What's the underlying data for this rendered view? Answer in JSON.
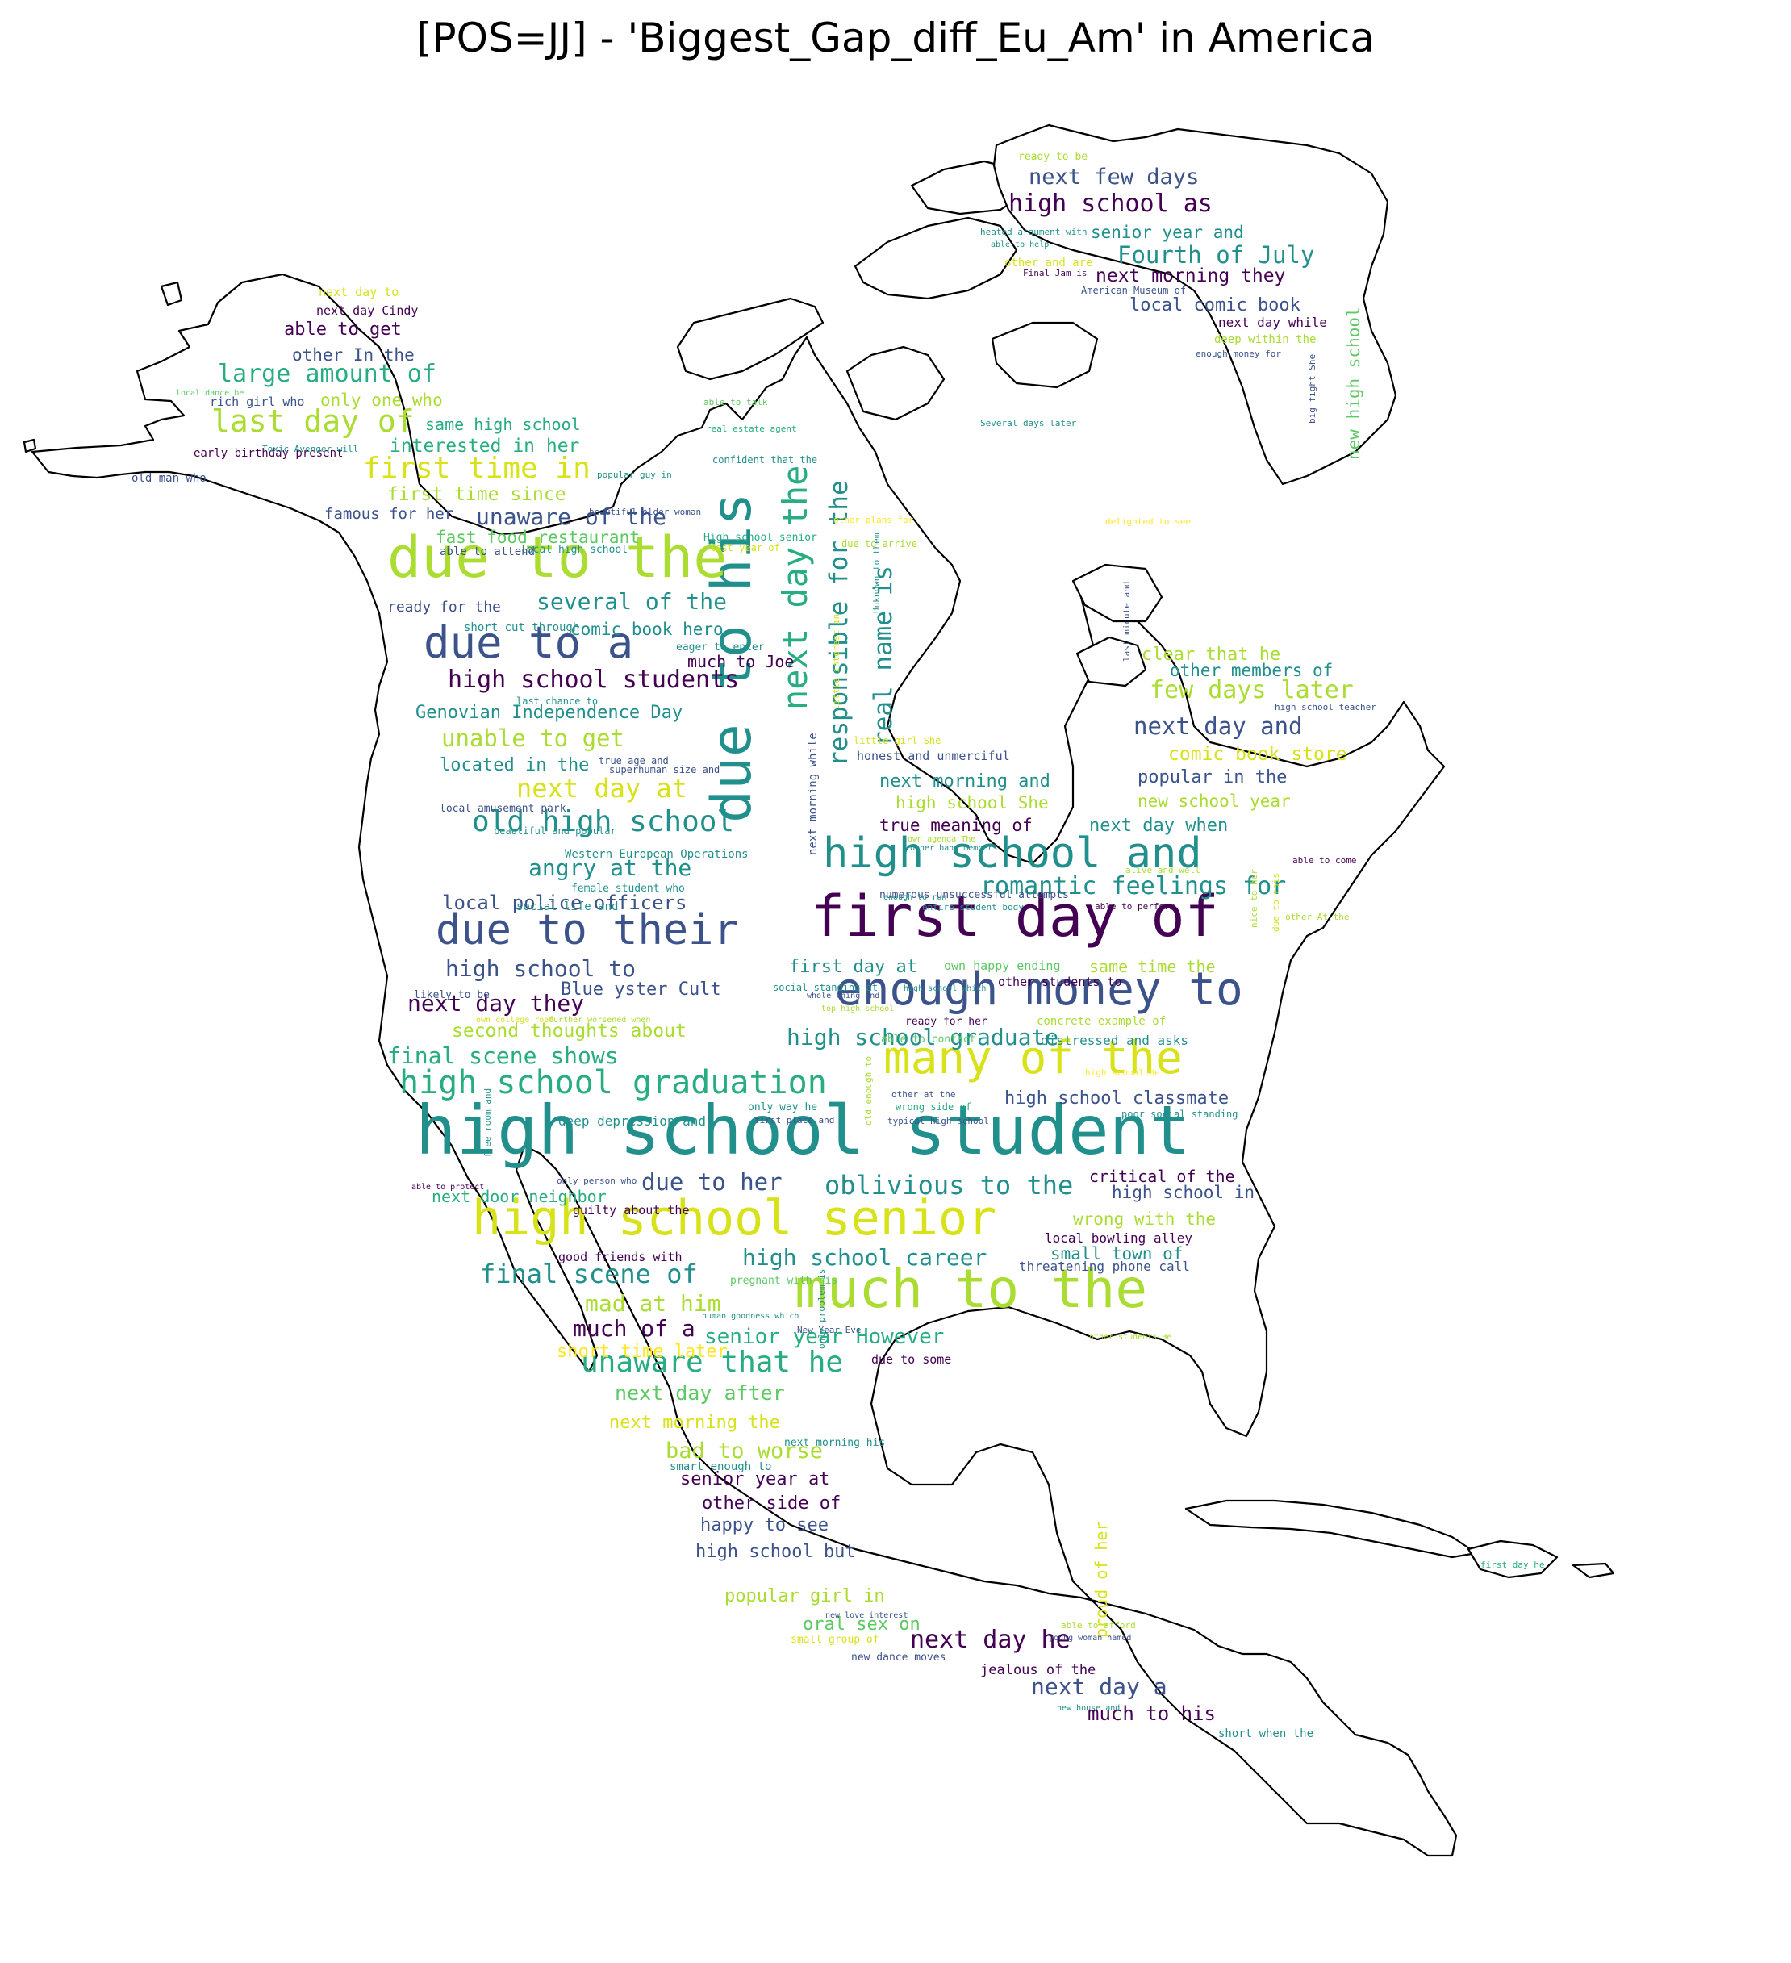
{
  "title": "[POS=JJ] - 'Biggest_Gap_diff_Eu_Am' in America",
  "palette": {
    "v1": "#440154",
    "v2": "#3b528b",
    "v3": "#21908d",
    "v4": "#27ad81",
    "v5": "#5dc963",
    "v6": "#aadc32",
    "v7": "#d8e219",
    "v8": "#fde725"
  },
  "words": [
    {
      "t": "high school student",
      "c": "v3"
    },
    {
      "t": "first day of",
      "c": "v1"
    },
    {
      "t": "due to his",
      "c": "v3"
    },
    {
      "t": "due to the",
      "c": "v6"
    },
    {
      "t": "much to the",
      "c": "v6"
    },
    {
      "t": "high school senior",
      "c": "v7"
    },
    {
      "t": "many of the",
      "c": "v7"
    },
    {
      "t": "enough money to",
      "c": "v2"
    },
    {
      "t": "due to their",
      "c": "v2"
    },
    {
      "t": "high school and",
      "c": "v3"
    },
    {
      "t": "due to a",
      "c": "v2"
    },
    {
      "t": "next day the",
      "c": "v4"
    },
    {
      "t": "high school graduation",
      "c": "v4"
    },
    {
      "t": "responsible for the",
      "c": "v3"
    },
    {
      "t": "real name is",
      "c": "v3"
    },
    {
      "t": "old high school",
      "c": "v3"
    },
    {
      "t": "last day of",
      "c": "v6"
    },
    {
      "t": "first time in",
      "c": "v7"
    },
    {
      "t": "oblivious to the",
      "c": "v3"
    },
    {
      "t": "final scene of",
      "c": "v3"
    },
    {
      "t": "unaware that he",
      "c": "v4"
    },
    {
      "t": "romantic feelings for",
      "c": "v3"
    },
    {
      "t": "high school students",
      "c": "v1"
    },
    {
      "t": "several of the",
      "c": "v3"
    },
    {
      "t": "next day at",
      "c": "v7"
    },
    {
      "t": "large amount of",
      "c": "v4"
    },
    {
      "t": "unable to get",
      "c": "v6"
    },
    {
      "t": "Fourth of July",
      "c": "v3"
    },
    {
      "t": "next few days",
      "c": "v2"
    },
    {
      "t": "high school as",
      "c": "v1"
    },
    {
      "t": "next day and",
      "c": "v2"
    },
    {
      "t": "few days later",
      "c": "v6"
    },
    {
      "t": "high school graduate",
      "c": "v3"
    },
    {
      "t": "angry at the",
      "c": "v3"
    },
    {
      "t": "final scene shows",
      "c": "v4"
    },
    {
      "t": "next day they",
      "c": "v1"
    },
    {
      "t": "high school to",
      "c": "v2"
    },
    {
      "t": "high school career",
      "c": "v3"
    },
    {
      "t": "mad at him",
      "c": "v6"
    },
    {
      "t": "much of a",
      "c": "v1"
    },
    {
      "t": "senior year However",
      "c": "v4"
    },
    {
      "t": "next day after",
      "c": "v5"
    },
    {
      "t": "bad to worse",
      "c": "v6"
    },
    {
      "t": "due to her",
      "c": "v2"
    },
    {
      "t": "next day he",
      "c": "v1"
    },
    {
      "t": "next day a",
      "c": "v2"
    },
    {
      "t": "much to his",
      "c": "v1"
    },
    {
      "t": "unaware of the",
      "c": "v2"
    },
    {
      "t": "new high school",
      "c": "v5"
    },
    {
      "t": "local police officers",
      "c": "v2"
    },
    {
      "t": "Genovian Independence Day",
      "c": "v3"
    },
    {
      "t": "first time since",
      "c": "v6"
    },
    {
      "t": "interested in her",
      "c": "v4"
    },
    {
      "t": "second thoughts about",
      "c": "v6"
    },
    {
      "t": "next morning they",
      "c": "v1"
    },
    {
      "t": "senior year and",
      "c": "v3"
    },
    {
      "t": "local comic book",
      "c": "v2"
    },
    {
      "t": "popular girl in",
      "c": "v6"
    },
    {
      "t": "oral sex on",
      "c": "v5"
    },
    {
      "t": "senior year at",
      "c": "v1"
    },
    {
      "t": "other side of",
      "c": "v1"
    },
    {
      "t": "happy to see",
      "c": "v2"
    },
    {
      "t": "high school but",
      "c": "v2"
    },
    {
      "t": "next morning the",
      "c": "v7"
    },
    {
      "t": "short time later",
      "c": "v8"
    },
    {
      "t": "able to get",
      "c": "v1"
    },
    {
      "t": "only one who",
      "c": "v6"
    },
    {
      "t": "other In the",
      "c": "v2"
    },
    {
      "t": "same high school",
      "c": "v4"
    },
    {
      "t": "high school classmate",
      "c": "v2"
    },
    {
      "t": "high school in",
      "c": "v2"
    },
    {
      "t": "critical of the",
      "c": "v1"
    },
    {
      "t": "wrong with the",
      "c": "v6"
    },
    {
      "t": "small town of",
      "c": "v3"
    },
    {
      "t": "next day when",
      "c": "v3"
    },
    {
      "t": "popular in the",
      "c": "v2"
    },
    {
      "t": "comic book store",
      "c": "v7"
    },
    {
      "t": "next morning and",
      "c": "v3"
    },
    {
      "t": "high school She",
      "c": "v6"
    },
    {
      "t": "true meaning of",
      "c": "v1"
    },
    {
      "t": "new school year",
      "c": "v6"
    },
    {
      "t": "clear that he",
      "c": "v6"
    },
    {
      "t": "other members of",
      "c": "v3"
    },
    {
      "t": "first day at",
      "c": "v3"
    },
    {
      "t": "same time the",
      "c": "v6"
    },
    {
      "t": "located in the",
      "c": "v3"
    },
    {
      "t": "comic book hero",
      "c": "v3"
    },
    {
      "t": "much to Joe",
      "c": "v1"
    },
    {
      "t": "fast food restaurant",
      "c": "v5"
    },
    {
      "t": "ready for the",
      "c": "v2"
    },
    {
      "t": "famous for her",
      "c": "v2"
    },
    {
      "t": "next door neighbor",
      "c": "v4"
    },
    {
      "t": "Blue yster Cult",
      "c": "v2"
    },
    {
      "t": "proud of her",
      "c": "v7"
    },
    {
      "t": "jealous of the",
      "c": "v1"
    },
    {
      "t": "local bowling alley",
      "c": "v1"
    },
    {
      "t": "threatening phone call",
      "c": "v2"
    },
    {
      "t": "distressed and asks",
      "c": "v3"
    },
    {
      "t": "due to some",
      "c": "v1"
    },
    {
      "t": "early birthday present",
      "c": "v1"
    },
    {
      "t": "rich girl who",
      "c": "v2"
    },
    {
      "t": "next day Cindy",
      "c": "v1"
    },
    {
      "t": "next day to",
      "c": "v7"
    },
    {
      "t": "next day while",
      "c": "v1"
    },
    {
      "t": "deep within the",
      "c": "v6"
    },
    {
      "t": "ready to be",
      "c": "v6"
    },
    {
      "t": "High school senior",
      "c": "v4"
    },
    {
      "t": "local high school",
      "c": "v3"
    },
    {
      "t": "able to attend",
      "c": "v2"
    },
    {
      "t": "short cut through",
      "c": "v3"
    },
    {
      "t": "eager to enter",
      "c": "v3"
    },
    {
      "t": "last chance to",
      "c": "v3"
    },
    {
      "t": "Western European Operations",
      "c": "v3"
    },
    {
      "t": "female student who",
      "c": "v3"
    },
    {
      "t": "social life and",
      "c": "v3"
    },
    {
      "t": "local amusement park",
      "c": "v2"
    },
    {
      "t": "honest and unmerciful",
      "c": "v2"
    },
    {
      "t": "little girl She",
      "c": "v7"
    },
    {
      "t": "true age and",
      "c": "v2"
    },
    {
      "t": "superhuman size and",
      "c": "v2"
    },
    {
      "t": "numerous unsuccessful attempts",
      "c": "v2"
    },
    {
      "t": "next morning while",
      "c": "v2"
    },
    {
      "t": "little interest in",
      "c": "v7"
    },
    {
      "t": "Unknown to them",
      "c": "v3"
    },
    {
      "t": "due to arrive",
      "c": "v6"
    },
    {
      "t": "last year of",
      "c": "v7"
    },
    {
      "t": "other plans for",
      "c": "v8"
    },
    {
      "t": "delighted to see",
      "c": "v8"
    },
    {
      "t": "high school He",
      "c": "v8"
    },
    {
      "t": "Several days later",
      "c": "v3"
    },
    {
      "t": "confident that the",
      "c": "v3"
    },
    {
      "t": "real estate agent",
      "c": "v4"
    },
    {
      "t": "able to talk",
      "c": "v5"
    },
    {
      "t": "popular guy in",
      "c": "v3"
    },
    {
      "t": "beautiful older woman",
      "c": "v2"
    },
    {
      "t": "Toxic Avenger will",
      "c": "v3"
    },
    {
      "t": "old man who",
      "c": "v2"
    },
    {
      "t": "local dance be",
      "c": "v5"
    },
    {
      "t": "heated argument with",
      "c": "v3"
    },
    {
      "t": "able to help",
      "c": "v3"
    },
    {
      "t": "other and are",
      "c": "v7"
    },
    {
      "t": "Final Jam is",
      "c": "v1"
    },
    {
      "t": "American Museum of",
      "c": "v2"
    },
    {
      "t": "enough money for",
      "c": "v2"
    },
    {
      "t": "big fight She",
      "c": "v2"
    },
    {
      "t": "last minute and",
      "c": "v2"
    },
    {
      "t": "high school teacher",
      "c": "v2"
    },
    {
      "t": "alive and well",
      "c": "v6"
    },
    {
      "t": "able to come",
      "c": "v1"
    },
    {
      "t": "able to perform",
      "c": "v1"
    },
    {
      "t": "other At the",
      "c": "v6"
    },
    {
      "t": "nice to her",
      "c": "v6"
    },
    {
      "t": "due to this",
      "c": "v7"
    },
    {
      "t": "own happy ending",
      "c": "v5"
    },
    {
      "t": "other students to",
      "c": "v1"
    },
    {
      "t": "concrete example of",
      "c": "v6"
    },
    {
      "t": "poor social standing",
      "c": "v3"
    },
    {
      "t": "typical high school",
      "c": "v2"
    },
    {
      "t": "wrong side of",
      "c": "v4"
    },
    {
      "t": "other at the",
      "c": "v2"
    },
    {
      "t": "only way he",
      "c": "v3"
    },
    {
      "t": "first place and",
      "c": "v2"
    },
    {
      "t": "old enough to",
      "c": "v6"
    },
    {
      "t": "deep depression and",
      "c": "v3"
    },
    {
      "t": "free room and",
      "c": "v3"
    },
    {
      "t": "able to protect",
      "c": "v1"
    },
    {
      "t": "only person who",
      "c": "v2"
    },
    {
      "t": "guilty about the",
      "c": "v1"
    },
    {
      "t": "good friends with",
      "c": "v1"
    },
    {
      "t": "pregnant with his",
      "c": "v5"
    },
    {
      "t": "human goodness which",
      "c": "v3"
    },
    {
      "t": "New Year Eve",
      "c": "v2"
    },
    {
      "t": "other students He",
      "c": "v6"
    },
    {
      "t": "only problem is",
      "c": "v3"
    },
    {
      "t": "next morning his",
      "c": "v3"
    },
    {
      "t": "smart enough to",
      "c": "v3"
    },
    {
      "t": "new love interest",
      "c": "v2"
    },
    {
      "t": "small group of",
      "c": "v7"
    },
    {
      "t": "new dance moves",
      "c": "v2"
    },
    {
      "t": "able to afford",
      "c": "v6"
    },
    {
      "t": "young woman named",
      "c": "v2"
    },
    {
      "t": "new house and",
      "c": "v3"
    },
    {
      "t": "short when the",
      "c": "v3"
    },
    {
      "t": "first day he",
      "c": "v4"
    },
    {
      "t": "likely to be",
      "c": "v2"
    },
    {
      "t": "own college road",
      "c": "v7"
    },
    {
      "t": "further worsened when",
      "c": "v6"
    },
    {
      "t": "whole thing and",
      "c": "v2"
    },
    {
      "t": "top high school",
      "c": "v6"
    },
    {
      "t": "social standing at",
      "c": "v3"
    },
    {
      "t": "high school which",
      "c": "v3"
    },
    {
      "t": "ready for her",
      "c": "v1"
    },
    {
      "t": "able to contact",
      "c": "v5"
    },
    {
      "t": "entire student body",
      "c": "v3"
    },
    {
      "t": "enough to run",
      "c": "v3"
    },
    {
      "t": "beautiful and popular",
      "c": "v3"
    },
    {
      "t": "own agenda The",
      "c": "v6"
    },
    {
      "t": "other band members",
      "c": "v3"
    },
    {
      "t": "due to boo",
      "c": "v6"
    },
    {
      "t": "other for the",
      "c": "v2"
    }
  ]
}
